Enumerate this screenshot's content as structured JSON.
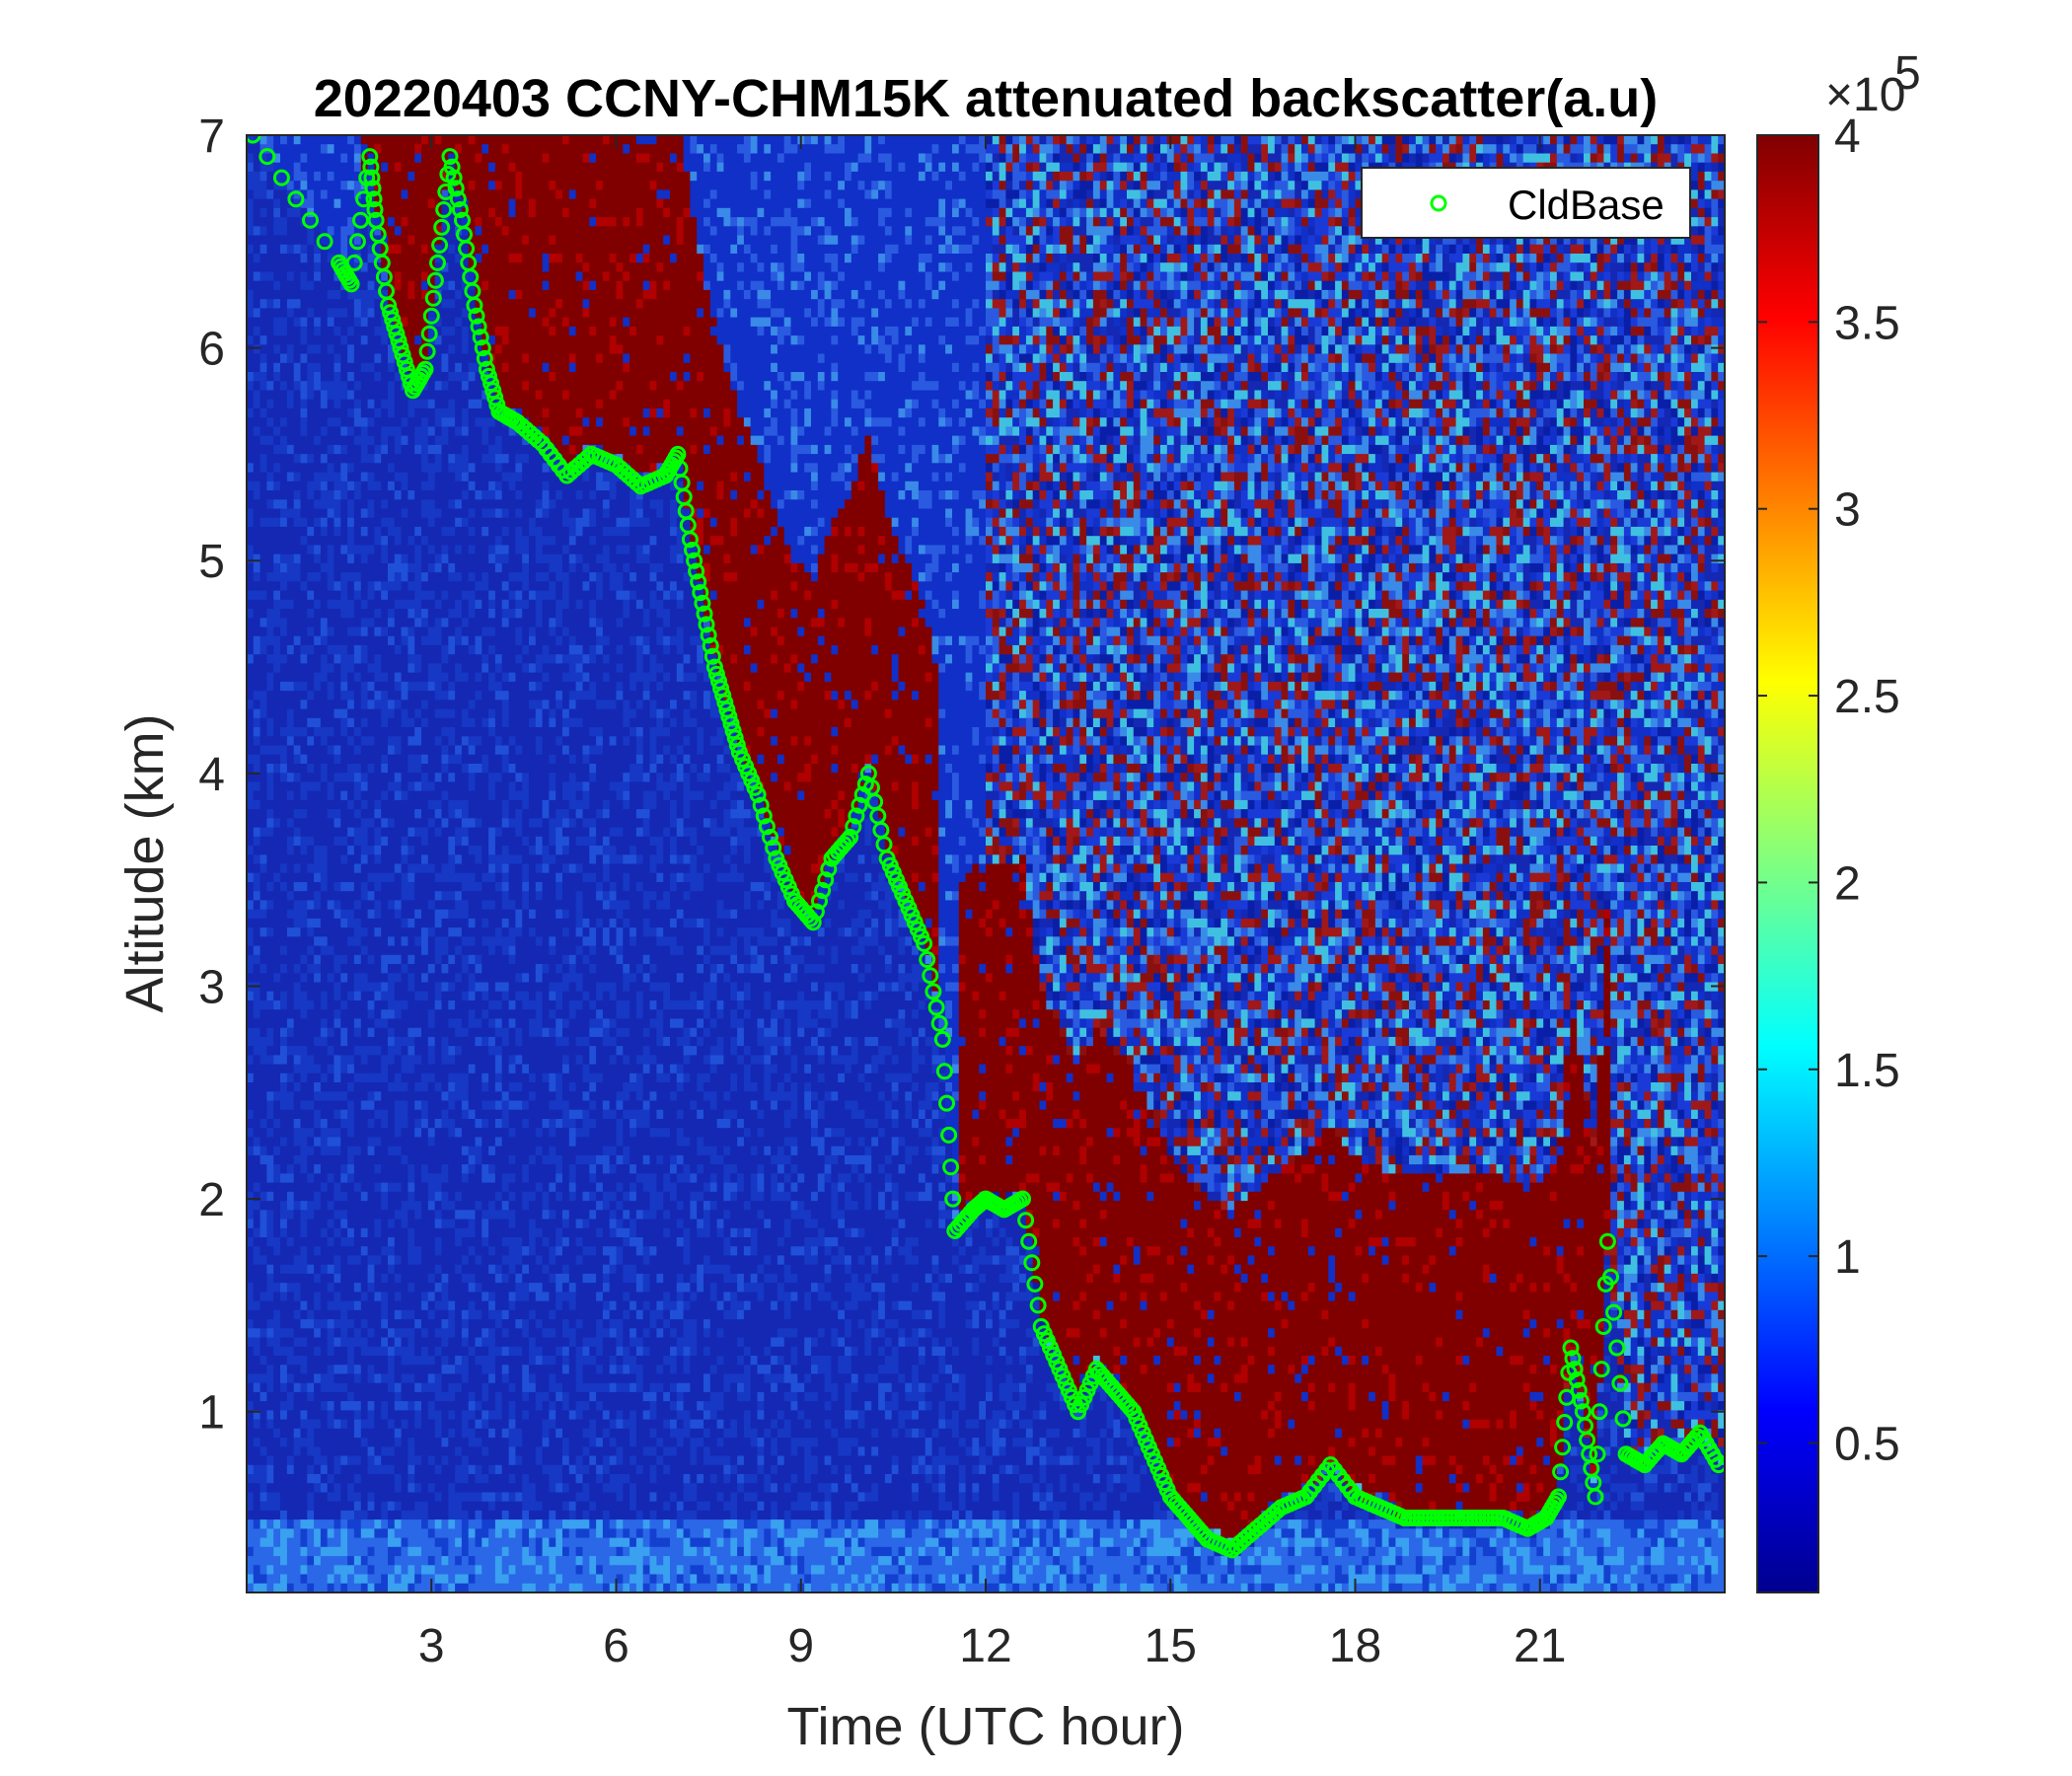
{
  "chart_data": {
    "type": "heatmap",
    "title": "20220403 CCNY-CHM15K attenuated backscatter(a.u)",
    "xlabel": "Time (UTC hour)",
    "ylabel": "Altitude (km)",
    "xlim": [
      0,
      24
    ],
    "ylim": [
      0.15,
      7
    ],
    "xticks": [
      3,
      6,
      9,
      12,
      15,
      18,
      21
    ],
    "yticks": [
      1,
      2,
      3,
      4,
      5,
      6,
      7
    ],
    "colorbar": {
      "colormap": "jet",
      "range": [
        0.1,
        4
      ],
      "ticks": [
        0.5,
        1,
        1.5,
        2,
        2.5,
        3,
        3.5,
        4
      ],
      "multiplier": "×10",
      "exponent": "5"
    },
    "legend": {
      "position": "top-right",
      "entries": [
        "CldBase"
      ]
    },
    "series": [
      {
        "name": "CldBase",
        "marker": "circle",
        "color": "#00ff00",
        "x": [
          0.1,
          1.5,
          1.7,
          2.0,
          2.1,
          2.3,
          2.5,
          2.7,
          2.9,
          3.1,
          3.3,
          3.5,
          3.7,
          3.9,
          4.1,
          4.4,
          4.8,
          5.2,
          5.6,
          6.0,
          6.4,
          6.8,
          7.0,
          7.2,
          7.4,
          7.6,
          7.8,
          8.0,
          8.3,
          8.6,
          8.9,
          9.2,
          9.5,
          9.8,
          10.1,
          10.4,
          10.7,
          11.0,
          11.3,
          11.5,
          11.8,
          12.0,
          12.3,
          12.6,
          12.9,
          13.2,
          13.5,
          13.8,
          14.1,
          14.4,
          14.7,
          15.0,
          15.3,
          15.6,
          16.0,
          16.4,
          16.8,
          17.2,
          17.6,
          18.0,
          18.4,
          18.8,
          19.2,
          19.6,
          20.0,
          20.4,
          20.8,
          21.1,
          21.3,
          21.5,
          21.7,
          21.9,
          22.1,
          22.4,
          22.7,
          23.0,
          23.3,
          23.6,
          23.9
        ],
        "y": [
          7.0,
          6.4,
          6.3,
          6.9,
          6.6,
          6.2,
          6.0,
          5.8,
          5.9,
          6.4,
          6.9,
          6.6,
          6.2,
          5.9,
          5.7,
          5.65,
          5.55,
          5.4,
          5.5,
          5.45,
          5.35,
          5.4,
          5.5,
          5.1,
          4.8,
          4.5,
          4.3,
          4.1,
          3.9,
          3.6,
          3.4,
          3.3,
          3.6,
          3.7,
          4.0,
          3.6,
          3.4,
          3.2,
          2.75,
          1.85,
          1.95,
          2.0,
          1.95,
          2.0,
          1.4,
          1.2,
          1.0,
          1.2,
          1.1,
          1.0,
          0.8,
          0.6,
          0.5,
          0.4,
          0.35,
          0.45,
          0.55,
          0.6,
          0.75,
          0.6,
          0.55,
          0.5,
          0.5,
          0.5,
          0.5,
          0.5,
          0.45,
          0.5,
          0.6,
          1.3,
          1.0,
          0.6,
          1.8,
          0.8,
          0.75,
          0.85,
          0.8,
          0.9,
          0.75
        ]
      }
    ]
  }
}
